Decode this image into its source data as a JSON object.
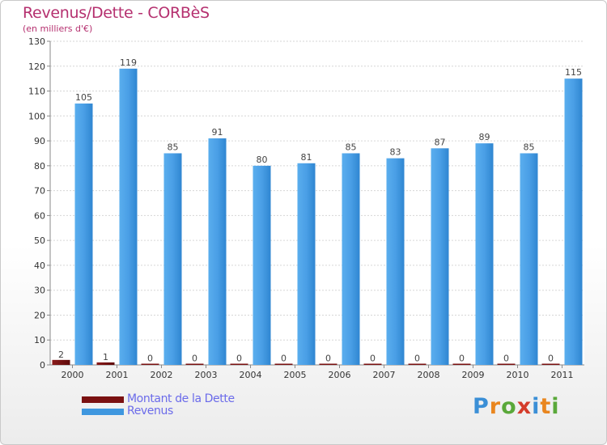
{
  "header": {
    "title": "Revenus/Dette - CORBèS",
    "subtitle": "(en milliers d'€)"
  },
  "chart_data": {
    "type": "bar",
    "categories": [
      "2000",
      "2001",
      "2002",
      "2003",
      "2004",
      "2005",
      "2006",
      "2007",
      "2008",
      "2009",
      "2010",
      "2011"
    ],
    "series": [
      {
        "name": "Montant de la Dette",
        "values": [
          2,
          1,
          0,
          0,
          0,
          0,
          0,
          0,
          0,
          0,
          0,
          0
        ],
        "color": "#7a1010"
      },
      {
        "name": "Revenus",
        "values": [
          105,
          119,
          85,
          91,
          80,
          81,
          85,
          83,
          87,
          89,
          85,
          115
        ],
        "color": "#3f97df"
      }
    ],
    "ylim": [
      0,
      130
    ],
    "yticks": [
      0,
      10,
      20,
      30,
      40,
      50,
      60,
      70,
      80,
      90,
      100,
      110,
      120,
      130
    ],
    "grid": true,
    "legend_position": "bottom-left",
    "xlabel": "",
    "ylabel": ""
  },
  "branding": {
    "logo_letters": [
      "P",
      "r",
      "o",
      "x",
      "i",
      "t",
      "i"
    ],
    "logo_colors": [
      "#3b8fd6",
      "#e9861f",
      "#5aa83a",
      "#d43c2b",
      "#3b8fd6",
      "#e9861f",
      "#5aa83a"
    ]
  }
}
